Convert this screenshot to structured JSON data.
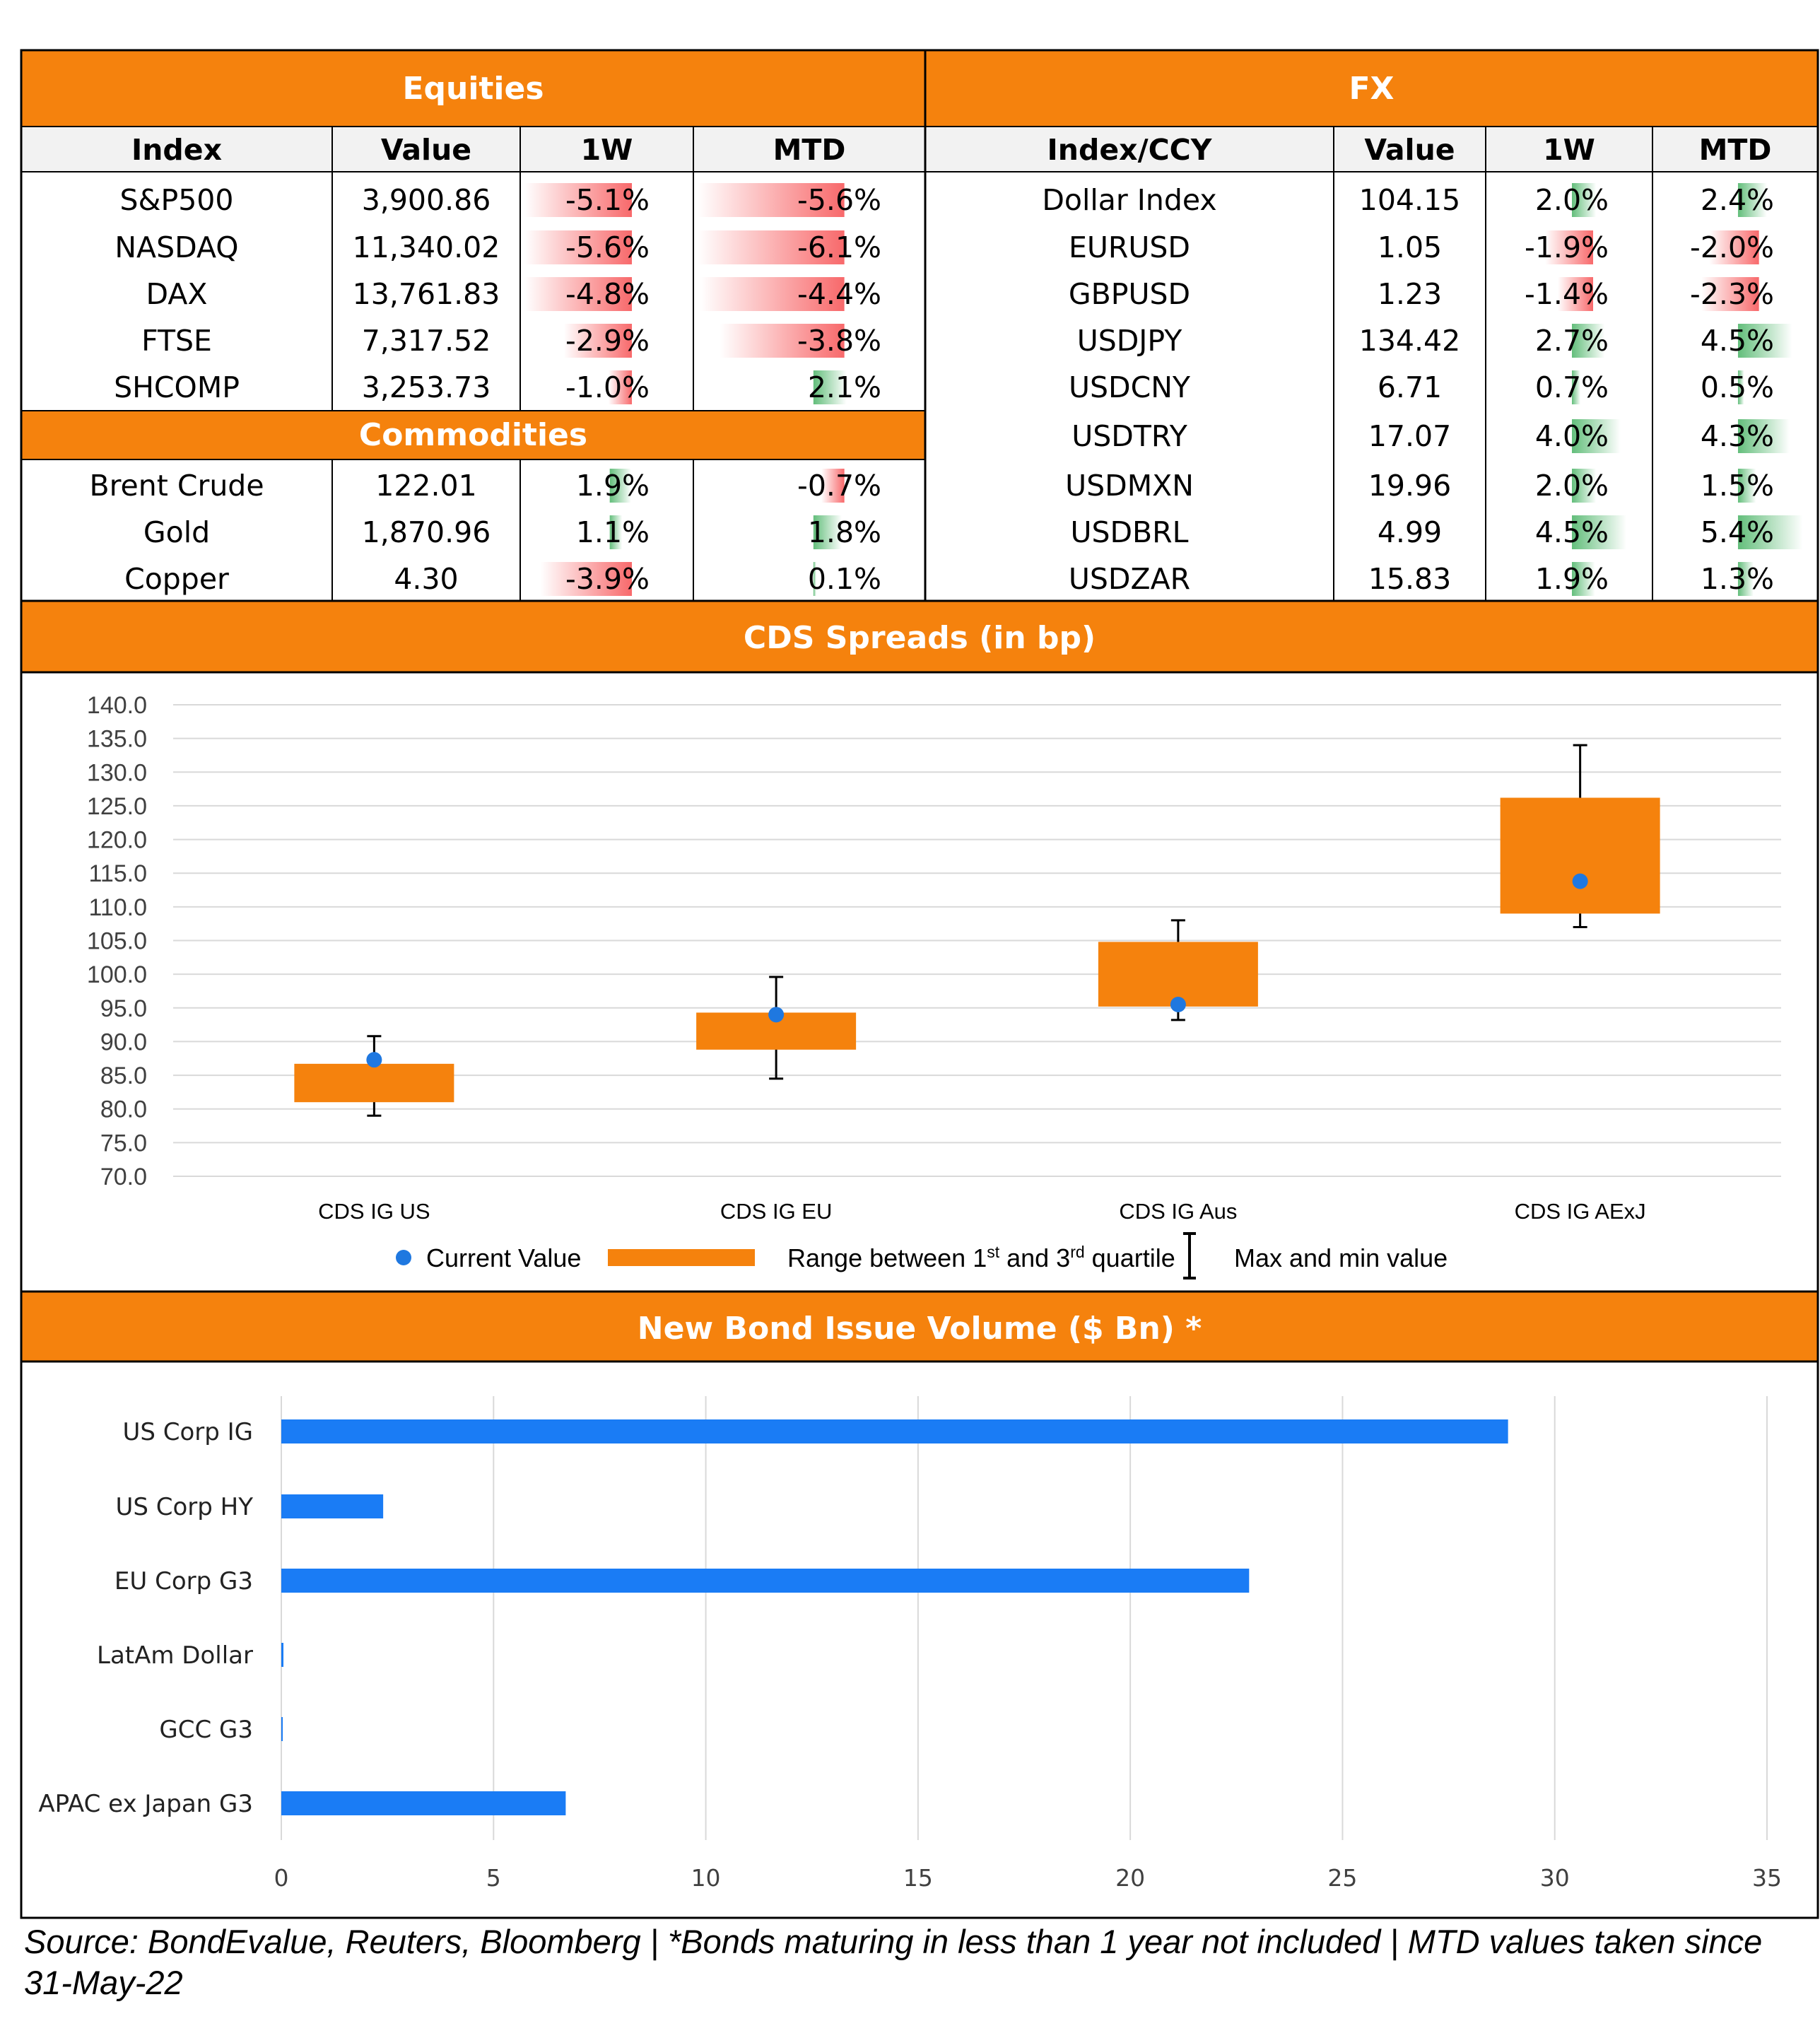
{
  "colors": {
    "header": "#f5820d",
    "neg": "#f8696b",
    "pos": "#63be7b",
    "bond_bar": "#1a7cf5",
    "cds_box": "#f5820d",
    "cds_dot": "#1f78e0",
    "grid": "#d9d9d9"
  },
  "equities": {
    "title": "Equities",
    "headers": [
      "Index",
      "Value",
      "1W",
      "MTD"
    ],
    "rows": [
      {
        "name": "S&P500",
        "value": "3,900.86",
        "w1": "-5.1%",
        "mtd": "-5.6%",
        "w1_num": -5.1,
        "mtd_num": -5.6
      },
      {
        "name": "NASDAQ",
        "value": "11,340.02",
        "w1": "-5.6%",
        "mtd": "-6.1%",
        "w1_num": -5.6,
        "mtd_num": -6.1
      },
      {
        "name": "DAX",
        "value": "13,761.83",
        "w1": "-4.8%",
        "mtd": "-4.4%",
        "w1_num": -4.8,
        "mtd_num": -4.4
      },
      {
        "name": "FTSE",
        "value": "7,317.52",
        "w1": "-2.9%",
        "mtd": "-3.8%",
        "w1_num": -2.9,
        "mtd_num": -3.8
      },
      {
        "name": "SHCOMP",
        "value": "3,253.73",
        "w1": "-1.0%",
        "mtd": "2.1%",
        "w1_num": -1.0,
        "mtd_num": 2.1
      }
    ]
  },
  "commodities": {
    "title": "Commodities",
    "rows": [
      {
        "name": "Brent Crude",
        "value": "122.01",
        "w1": "1.9%",
        "mtd": "-0.7%",
        "w1_num": 1.9,
        "mtd_num": -0.7
      },
      {
        "name": "Gold",
        "value": "1,870.96",
        "w1": "1.1%",
        "mtd": "1.8%",
        "w1_num": 1.1,
        "mtd_num": 1.8
      },
      {
        "name": "Copper",
        "value": "4.30",
        "w1": "-3.9%",
        "mtd": "0.1%",
        "w1_num": -3.9,
        "mtd_num": 0.1
      }
    ]
  },
  "fx": {
    "title": "FX",
    "headers": [
      "Index/CCY",
      "Value",
      "1W",
      "MTD"
    ],
    "rows": [
      {
        "name": "Dollar Index",
        "value": "104.15",
        "w1": "2.0%",
        "mtd": "2.4%",
        "w1_num": 2.0,
        "mtd_num": 2.4
      },
      {
        "name": "EURUSD",
        "value": "1.05",
        "w1": "-1.9%",
        "mtd": "-2.0%",
        "w1_num": -1.9,
        "mtd_num": -2.0
      },
      {
        "name": "GBPUSD",
        "value": "1.23",
        "w1": "-1.4%",
        "mtd": "-2.3%",
        "w1_num": -1.4,
        "mtd_num": -2.3
      },
      {
        "name": "USDJPY",
        "value": "134.42",
        "w1": "2.7%",
        "mtd": "4.5%",
        "w1_num": 2.7,
        "mtd_num": 4.5
      },
      {
        "name": "USDCNY",
        "value": "6.71",
        "w1": "0.7%",
        "mtd": "0.5%",
        "w1_num": 0.7,
        "mtd_num": 0.5
      },
      {
        "name": "USDTRY",
        "value": "17.07",
        "w1": "4.0%",
        "mtd": "4.3%",
        "w1_num": 4.0,
        "mtd_num": 4.3
      },
      {
        "name": "USDMXN",
        "value": "19.96",
        "w1": "2.0%",
        "mtd": "1.5%",
        "w1_num": 2.0,
        "mtd_num": 1.5
      },
      {
        "name": "USDBRL",
        "value": "4.99",
        "w1": "4.5%",
        "mtd": "5.4%",
        "w1_num": 4.5,
        "mtd_num": 5.4
      },
      {
        "name": "USDZAR",
        "value": "15.83",
        "w1": "1.9%",
        "mtd": "1.3%",
        "w1_num": 1.9,
        "mtd_num": 1.3
      }
    ]
  },
  "chart_data": [
    {
      "type": "box",
      "title": "CDS Spreads (in bp)",
      "ylim": [
        70,
        140
      ],
      "ystep": 5,
      "yticks": [
        "70.0",
        "75.0",
        "80.0",
        "85.0",
        "90.0",
        "95.0",
        "100.0",
        "105.0",
        "110.0",
        "115.0",
        "120.0",
        "125.0",
        "130.0",
        "135.0",
        "140.0"
      ],
      "categories": [
        "CDS IG US",
        "CDS IG EU",
        "CDS IG Aus",
        "CDS IG AExJ"
      ],
      "q1": [
        81.0,
        88.8,
        95.2,
        109.0
      ],
      "q3": [
        86.7,
        94.3,
        104.8,
        126.2
      ],
      "min": [
        79.0,
        84.5,
        93.2,
        107.0
      ],
      "max": [
        90.8,
        99.6,
        108.0,
        134.0
      ],
      "current": [
        87.3,
        94.0,
        95.5,
        113.8
      ],
      "legend": {
        "current": "Current Value",
        "range_pre": "Range between 1",
        "range_sup1": "st",
        "range_mid": " and 3",
        "range_sup2": "rd",
        "range_post": " quartile",
        "maxmin": "Max and min value"
      }
    },
    {
      "type": "bar",
      "orientation": "horizontal",
      "title": "New Bond Issue Volume ($ Bn) *",
      "categories": [
        "US Corp IG",
        "US Corp HY",
        "EU Corp G3",
        "LatAm Dollar",
        "GCC G3",
        "APAC ex Japan G3"
      ],
      "values": [
        28.9,
        2.4,
        22.8,
        0.05,
        0.03,
        6.7
      ],
      "xlim": [
        0,
        35
      ],
      "xticks": [
        "0",
        "5",
        "10",
        "15",
        "20",
        "25",
        "30",
        "35"
      ]
    }
  ],
  "footer": "Source: BondEvalue, Reuters, Bloomberg | *Bonds maturing in less than 1 year not included | MTD values taken since 31-May-22"
}
